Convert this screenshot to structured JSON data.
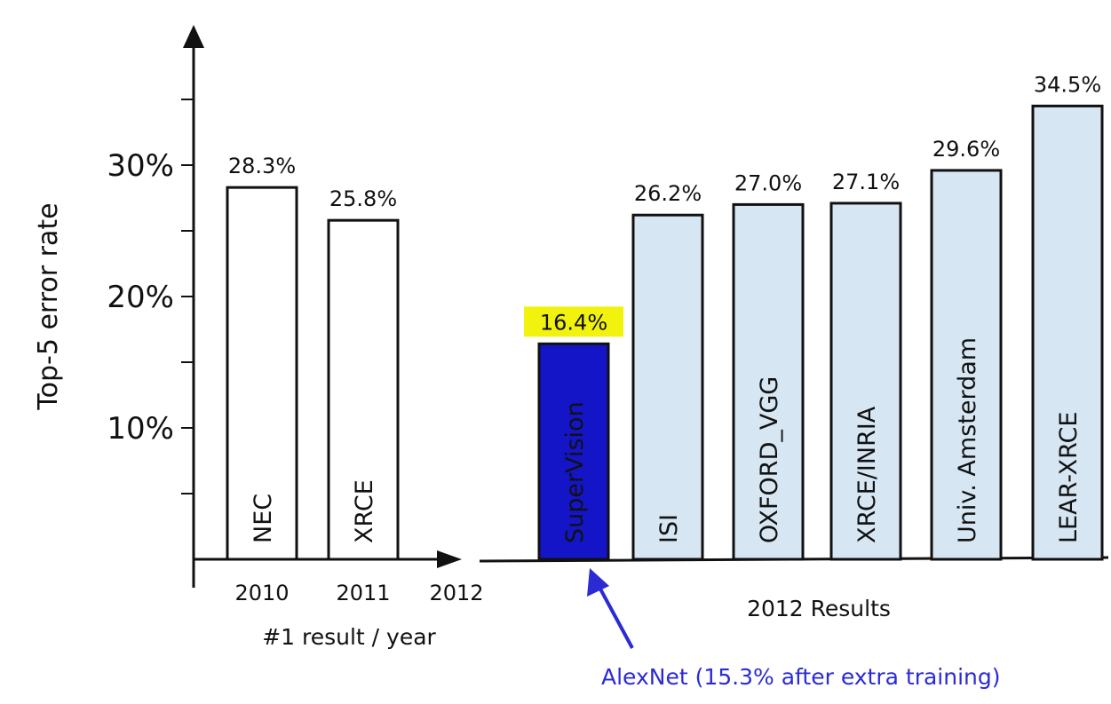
{
  "colors": {
    "baseline_bar": "#ffffff",
    "competitor_bar": "#d7e6f3",
    "highlight_bar": "#1515c8",
    "highlight_text": "#ffffff",
    "value_highlight": "#f2f20f",
    "annotation": "#2b2bd6",
    "ink": "#111111"
  },
  "chart_data": {
    "type": "bar",
    "ylabel": "Top-5 error rate",
    "ylim": [
      0,
      40
    ],
    "yticks": [
      {
        "value": 10,
        "label": "10%"
      },
      {
        "value": 20,
        "label": "20%"
      },
      {
        "value": 30,
        "label": "30%"
      }
    ],
    "grid": false,
    "bars": [
      {
        "name": "NEC",
        "value": 28.3,
        "label": "28.3%",
        "year": "2010",
        "style": "baseline"
      },
      {
        "name": "XRCE",
        "value": 25.8,
        "label": "25.8%",
        "year": "2011",
        "style": "baseline"
      },
      {
        "name": "SuperVision",
        "value": 16.4,
        "label": "16.4%",
        "year": "",
        "style": "highlight"
      },
      {
        "name": "ISI",
        "value": 26.2,
        "label": "26.2%",
        "year": "",
        "style": "competitor"
      },
      {
        "name": "OXFORD_VGG",
        "value": 27.0,
        "label": "27.0%",
        "year": "",
        "style": "competitor"
      },
      {
        "name": "XRCE/INRIA",
        "value": 27.1,
        "label": "27.1%",
        "year": "",
        "style": "competitor"
      },
      {
        "name": "Univ. Amsterdam",
        "value": 29.6,
        "label": "29.6%",
        "year": "",
        "style": "competitor"
      },
      {
        "name": "LEAR-XRCE",
        "value": 34.5,
        "label": "34.5%",
        "year": "",
        "style": "competitor"
      }
    ],
    "x_marker_label": "2012",
    "group_labels": {
      "history": "#1 result / year",
      "results": "2012 Results"
    },
    "annotation": "AlexNet (15.3% after extra training)"
  }
}
